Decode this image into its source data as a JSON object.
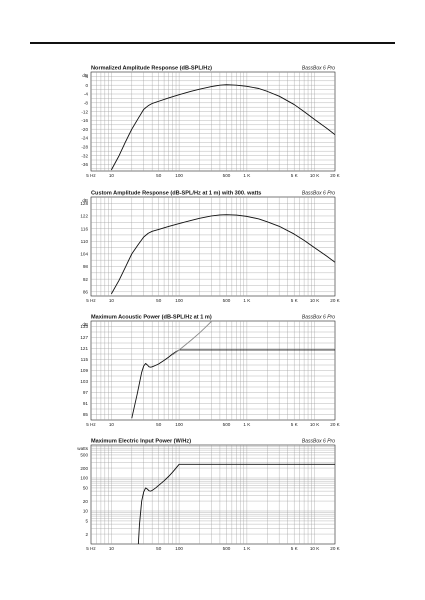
{
  "chart_data": [
    {
      "type": "line",
      "title": "Normalized Amplitude Response (dB-SPL/Hz)",
      "brand": "BassBox 6 Pro",
      "ylabel": "dB",
      "xscale": "log",
      "xlim": [
        5,
        20000
      ],
      "ylim": [
        -39,
        6
      ],
      "yticks": [
        4,
        0,
        -4,
        -8,
        -12,
        -16,
        -20,
        -24,
        -28,
        -32,
        -36
      ],
      "xticks": [
        5,
        10,
        50,
        100,
        500,
        1000,
        5000,
        10000,
        20000
      ],
      "xtick_labels": [
        "5 Hz",
        "10",
        "50",
        "100",
        "500",
        "1 K",
        "5 K",
        "10 K",
        "20 K"
      ],
      "grid": true,
      "series": [
        {
          "color": "#111111",
          "x": [
            10,
            13,
            16,
            20,
            25,
            30,
            35,
            40,
            50,
            70,
            100,
            150,
            200,
            300,
            400,
            500,
            700,
            1000,
            1500,
            2000,
            3000,
            5000,
            7000,
            10000,
            15000,
            20000
          ],
          "y": [
            -38.5,
            -32,
            -26,
            -20,
            -15,
            -11,
            -9.3,
            -8.3,
            -7.3,
            -5.8,
            -4.3,
            -2.8,
            -1.8,
            -0.6,
            0,
            0.2,
            0,
            -0.5,
            -1.5,
            -2.8,
            -5,
            -8.8,
            -12,
            -15.6,
            -19.5,
            -22.5
          ]
        }
      ]
    },
    {
      "type": "line",
      "title": "Custom Amplitude Response (dB-SPL/Hz at 1 m) with 300. watts",
      "brand": "BassBox 6 Pro",
      "ylabel": "dB",
      "xscale": "log",
      "xlim": [
        5,
        20000
      ],
      "ylim": [
        84,
        131
      ],
      "yticks": [
        128,
        122,
        116,
        110,
        104,
        98,
        92,
        86
      ],
      "xticks": [
        5,
        10,
        50,
        100,
        500,
        1000,
        5000,
        10000,
        20000
      ],
      "xtick_labels": [
        "5 Hz",
        "10",
        "50",
        "100",
        "500",
        "1 K",
        "5 K",
        "10 K",
        "20 K"
      ],
      "grid": true,
      "series": [
        {
          "color": "#111111",
          "x": [
            10,
            13,
            16,
            20,
            25,
            30,
            35,
            40,
            50,
            70,
            100,
            150,
            200,
            300,
            400,
            500,
            700,
            1000,
            1500,
            2000,
            3000,
            5000,
            7000,
            10000,
            15000,
            20000
          ],
          "y": [
            85,
            91.5,
            97.5,
            104,
            108.5,
            112,
            113.8,
            114.7,
            115.6,
            117,
            118.4,
            119.9,
            120.9,
            122,
            122.5,
            122.6,
            122.4,
            121.8,
            120.6,
            119.2,
            117.1,
            113.4,
            110.4,
            106.9,
            103,
            100
          ]
        }
      ]
    },
    {
      "type": "line",
      "title": "Maximum Acoustic Power (dB-SPL/Hz at 1 m)",
      "brand": "BassBox 6 Pro",
      "ylabel": "dB",
      "xscale": "log",
      "xlim": [
        5,
        20000
      ],
      "ylim": [
        82,
        136
      ],
      "yticks": [
        133,
        127,
        121,
        115,
        109,
        103,
        97,
        91,
        85
      ],
      "xticks": [
        5,
        10,
        50,
        100,
        500,
        1000,
        5000,
        10000,
        20000
      ],
      "xtick_labels": [
        "5 Hz",
        "10",
        "50",
        "100",
        "500",
        "1 K",
        "5 K",
        "10 K",
        "20 K"
      ],
      "grid": true,
      "series": [
        {
          "color": "#111111",
          "x": [
            20,
            24,
            28,
            30,
            32,
            34,
            36,
            38,
            40,
            45,
            50,
            60,
            70,
            80,
            90,
            100,
            120,
            150,
            200,
            500,
            1000,
            5000,
            20000
          ],
          "y": [
            83,
            96,
            108,
            111.5,
            112.8,
            112,
            111,
            110.8,
            111,
            111.8,
            112.6,
            114.5,
            116.3,
            118,
            119.3,
            120.2,
            120.2,
            120.2,
            120.2,
            120.2,
            120.2,
            120.2,
            120.2
          ]
        },
        {
          "color": "#8a8a8a",
          "x": [
            80,
            100,
            150,
            200,
            260,
            300
          ],
          "y": [
            117.5,
            120.2,
            125.5,
            129.5,
            133.5,
            135.8
          ]
        }
      ]
    },
    {
      "type": "line",
      "title": "Maximum Electric Input Power (W/Hz)",
      "brand": "BassBox 6 Pro",
      "ylabel": "watts",
      "xscale": "log",
      "yscale": "log",
      "xlim": [
        5,
        20000
      ],
      "ylim": [
        1,
        1000
      ],
      "yticks": [
        500,
        200,
        100,
        50,
        20,
        10,
        5,
        2
      ],
      "xticks": [
        5,
        10,
        50,
        100,
        500,
        1000,
        5000,
        10000,
        20000
      ],
      "xtick_labels": [
        "5 Hz",
        "10",
        "50",
        "100",
        "500",
        "1 K",
        "5 K",
        "10 K",
        "20 K"
      ],
      "grid": true,
      "series": [
        {
          "color": "#111111",
          "x": [
            25,
            26,
            28,
            30,
            32,
            34,
            36,
            38,
            40,
            45,
            50,
            60,
            70,
            80,
            90,
            100,
            200,
            1000,
            20000
          ],
          "y": [
            1,
            4,
            20,
            38,
            50,
            46,
            41,
            40,
            42,
            50,
            60,
            82,
            112,
            150,
            200,
            260,
            260,
            260,
            260
          ]
        }
      ]
    }
  ]
}
